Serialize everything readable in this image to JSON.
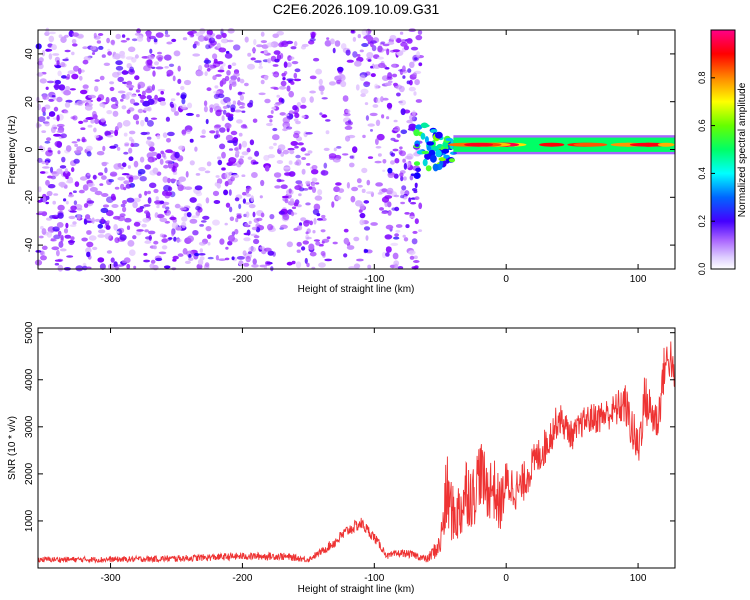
{
  "figure_title": "C2E6.2026.109.10.09.G31",
  "colors": {
    "snr_line": "#ee3333",
    "band": "#33aaee",
    "frame": "#000000"
  },
  "chart_data": [
    {
      "type": "heatmap",
      "title": "C2E6.2026.109.10.09.G31",
      "xlabel": "Height of straight line (km)",
      "ylabel": "Frequency (Hz)",
      "xlim": [
        -355,
        128
      ],
      "ylim": [
        -50,
        50
      ],
      "xticks": [
        -300,
        -200,
        -100,
        0,
        100
      ],
      "yticks": [
        -40,
        -20,
        0,
        20,
        40
      ],
      "colorbar": {
        "label": "Normalized spectral amplitude",
        "range": [
          0.0,
          1.0
        ],
        "ticks": [
          0.0,
          0.2,
          0.4,
          0.6,
          0.8
        ],
        "colormap": [
          "#ffffff",
          "#cc99ff",
          "#8800ff",
          "#0000ff",
          "#00ccff",
          "#00ff66",
          "#88ff00",
          "#ffff00",
          "#ff8800",
          "#ff0000",
          "#ff0088"
        ]
      },
      "features": [
        {
          "name": "noise region",
          "x_range": [
            -355,
            -65
          ],
          "freq_range": [
            -50,
            50
          ],
          "amplitude_range": [
            0.05,
            0.25
          ]
        },
        {
          "name": "signal onset",
          "x": -60,
          "freq_center": 0,
          "freq_spread": 12,
          "amplitude": 0.5
        },
        {
          "name": "carrier line",
          "x_range": [
            -40,
            128
          ],
          "freq_center": 2,
          "freq_spread": 3,
          "amplitude_range": [
            0.7,
            0.95
          ]
        }
      ]
    },
    {
      "type": "line",
      "title": "",
      "xlabel": "Height of straight line (km)",
      "ylabel": "SNR (10 * v/v)",
      "xlim": [
        -355,
        128
      ],
      "ylim": [
        0,
        5100
      ],
      "xticks": [
        -300,
        -200,
        -100,
        0,
        100
      ],
      "yticks": [
        1000,
        2000,
        3000,
        4000,
        5000
      ],
      "series": [
        {
          "name": "SNR",
          "x": [
            -355,
            -300,
            -250,
            -200,
            -170,
            -150,
            -140,
            -130,
            -120,
            -110,
            -100,
            -90,
            -80,
            -70,
            -60,
            -50,
            -45,
            -40,
            -35,
            -30,
            -25,
            -20,
            -15,
            -10,
            -5,
            0,
            10,
            20,
            30,
            40,
            50,
            60,
            70,
            80,
            90,
            95,
            100,
            105,
            110,
            115,
            120,
            125,
            128
          ],
          "values": [
            180,
            180,
            200,
            250,
            250,
            180,
            350,
            550,
            800,
            950,
            650,
            250,
            320,
            280,
            180,
            500,
            1600,
            1100,
            1200,
            1700,
            1500,
            2100,
            1650,
            1750,
            1300,
            1800,
            1650,
            2200,
            2600,
            3200,
            2800,
            3150,
            3200,
            3300,
            3500,
            3000,
            2500,
            3600,
            3300,
            3100,
            4300,
            4500,
            3800
          ],
          "noise": [
            60,
            60,
            70,
            80,
            80,
            60,
            70,
            120,
            130,
            130,
            110,
            70,
            80,
            80,
            80,
            250,
            900,
            600,
            700,
            800,
            700,
            750,
            650,
            700,
            600,
            500,
            450,
            400,
            400,
            350,
            300,
            300,
            350,
            350,
            450,
            500,
            500,
            550,
            500,
            450,
            500,
            450,
            300
          ]
        }
      ]
    }
  ]
}
